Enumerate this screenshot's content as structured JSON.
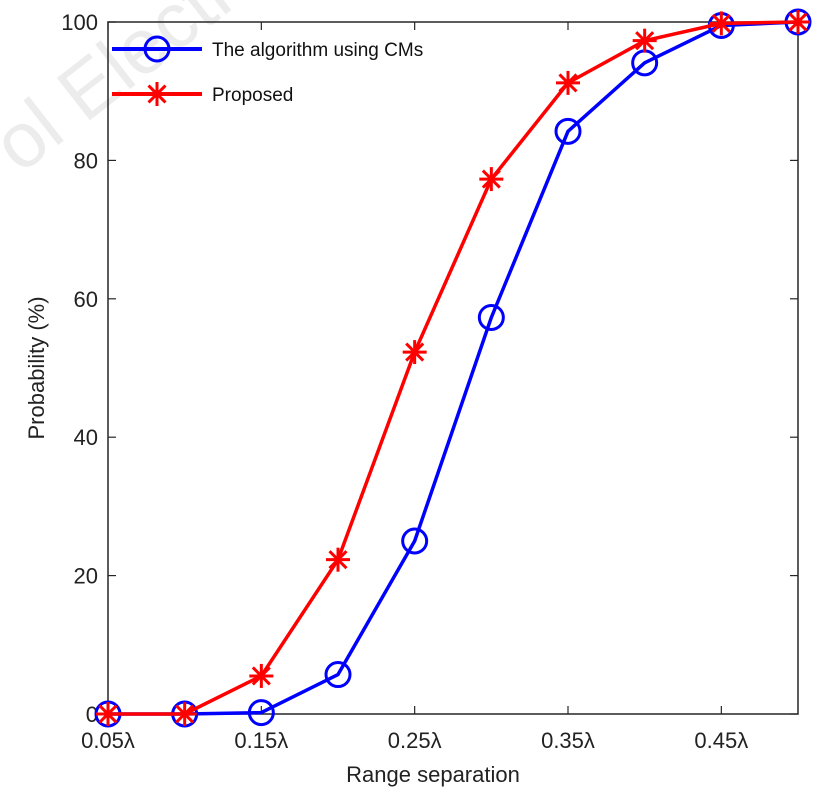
{
  "chart_data": {
    "type": "line",
    "xlabel": "Range separation",
    "ylabel": "Probability (%)",
    "x": [
      0.05,
      0.1,
      0.15,
      0.2,
      0.25,
      0.3,
      0.35,
      0.4,
      0.45,
      0.5
    ],
    "xlim": [
      0.05,
      0.5
    ],
    "ylim": [
      0,
      100
    ],
    "xticks": [
      0.05,
      0.15,
      0.25,
      0.35,
      0.45
    ],
    "xtick_labels": [
      "0.05λ",
      "0.15λ",
      "0.25λ",
      "0.35λ",
      "0.45λ"
    ],
    "yticks": [
      0,
      20,
      40,
      60,
      80,
      100
    ],
    "ytick_labels": [
      "0",
      "20",
      "40",
      "60",
      "80",
      "100"
    ],
    "grid": false,
    "legend_position": "top-left",
    "series": [
      {
        "name": "The algorithm using CMs",
        "color": "#0000ff",
        "marker": "circle",
        "values": [
          0,
          0,
          0.2,
          5.7,
          25,
          57.3,
          84.2,
          94.1,
          99.5,
          100
        ]
      },
      {
        "name": "Proposed",
        "color": "#ff0000",
        "marker": "asterisk",
        "values": [
          0,
          0,
          5.5,
          22.3,
          52.3,
          77.3,
          91.2,
          97.3,
          99.8,
          100
        ]
      }
    ],
    "watermark": "ol Electro"
  }
}
